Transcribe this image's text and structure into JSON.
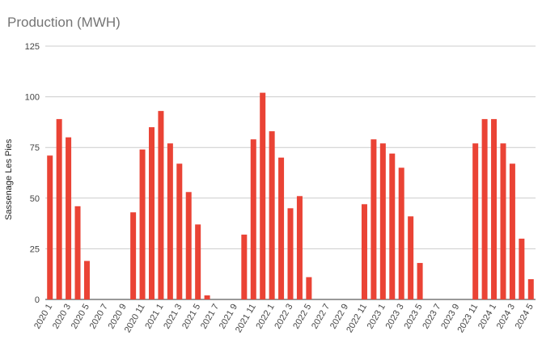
{
  "chart_data": {
    "type": "bar",
    "title": "Production (MWH)",
    "xlabel": "",
    "ylabel": "Sassenage Les Pies",
    "ylim": [
      0,
      125
    ],
    "yticks": [
      0,
      25,
      50,
      75,
      100,
      125
    ],
    "grid": true,
    "legend": "none",
    "bar_color": "#ea4335",
    "categories": [
      "2020 1",
      "2020 2",
      "2020 3",
      "2020 4",
      "2020 5",
      "2020 6",
      "2020 7",
      "2020 8",
      "2020 9",
      "2020 10",
      "2020 11",
      "2020 12",
      "2021 1",
      "2021 2",
      "2021 3",
      "2021 4",
      "2021 5",
      "2021 6",
      "2021 7",
      "2021 8",
      "2021 9",
      "2021 10",
      "2021 11",
      "2021 12",
      "2022 1",
      "2022 2",
      "2022 3",
      "2022 4",
      "2022 5",
      "2022 6",
      "2022 7",
      "2022 8",
      "2022 9",
      "2022 10",
      "2022 11",
      "2022 12",
      "2023 1",
      "2023 2",
      "2023 3",
      "2023 4",
      "2023 5",
      "2023 6",
      "2023 7",
      "2023 8",
      "2023 9",
      "2023 10",
      "2023 11",
      "2023 12",
      "2024 1",
      "2024 2",
      "2024 3",
      "2024 4",
      "2024 5"
    ],
    "values": [
      71,
      89,
      80,
      46,
      19,
      0,
      0,
      0,
      0,
      43,
      74,
      85,
      93,
      77,
      67,
      53,
      37,
      2,
      0,
      0,
      0,
      32,
      79,
      102,
      83,
      70,
      45,
      51,
      11,
      0,
      0,
      0,
      0,
      0,
      47,
      79,
      77,
      72,
      65,
      41,
      18,
      0,
      0,
      0,
      0,
      0,
      77,
      89,
      89,
      77,
      67,
      30,
      10
    ],
    "shown_xticks": [
      "2020 1",
      "2020 3",
      "2020 5",
      "2020 7",
      "2020 9",
      "2020 11",
      "2021 1",
      "2021 3",
      "2021 5",
      "2021 7",
      "2021 9",
      "2021 11",
      "2022 1",
      "2022 3",
      "2022 5",
      "2022 7",
      "2022 9",
      "2022 11",
      "2023 1",
      "2023 3",
      "2023 5",
      "2023 7",
      "2023 9",
      "2023 11",
      "2024 1",
      "2024 3",
      "2024 5"
    ]
  }
}
